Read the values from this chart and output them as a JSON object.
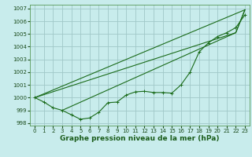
{
  "xlabel": "Graphe pression niveau de la mer (hPa)",
  "bg_color": "#c8ecec",
  "grid_color": "#a0c8c8",
  "line_color": "#1a6b1a",
  "ylim": [
    997.8,
    1007.3
  ],
  "xlim": [
    -0.5,
    23.5
  ],
  "yticks": [
    998,
    999,
    1000,
    1001,
    1002,
    1003,
    1004,
    1005,
    1006,
    1007
  ],
  "xticks": [
    0,
    1,
    2,
    3,
    4,
    5,
    6,
    7,
    8,
    9,
    10,
    11,
    12,
    13,
    14,
    15,
    16,
    17,
    18,
    19,
    20,
    21,
    22,
    23
  ],
  "tick_fontsize": 5.0,
  "label_fontsize": 6.5,
  "main_x": [
    0,
    1,
    2,
    3,
    4,
    5,
    6,
    7,
    8,
    9,
    10,
    11,
    12,
    13,
    14,
    15,
    16,
    17,
    18,
    19,
    20,
    21,
    22,
    23
  ],
  "main_y": [
    1000.0,
    999.65,
    999.2,
    999.0,
    998.65,
    998.3,
    998.4,
    998.85,
    999.6,
    999.65,
    1000.2,
    1000.45,
    1000.5,
    1000.4,
    1000.4,
    1000.35,
    1001.0,
    1002.0,
    1003.6,
    1004.3,
    1004.8,
    1005.1,
    1005.5,
    1006.5
  ],
  "trend1_x": [
    0,
    23
  ],
  "trend1_y": [
    1000.0,
    1006.9
  ],
  "trend2_x": [
    0,
    22,
    23
  ],
  "trend2_y": [
    1000.0,
    1005.1,
    1006.9
  ],
  "trend3_x": [
    3,
    22,
    23
  ],
  "trend3_y": [
    999.0,
    1005.1,
    1006.9
  ]
}
